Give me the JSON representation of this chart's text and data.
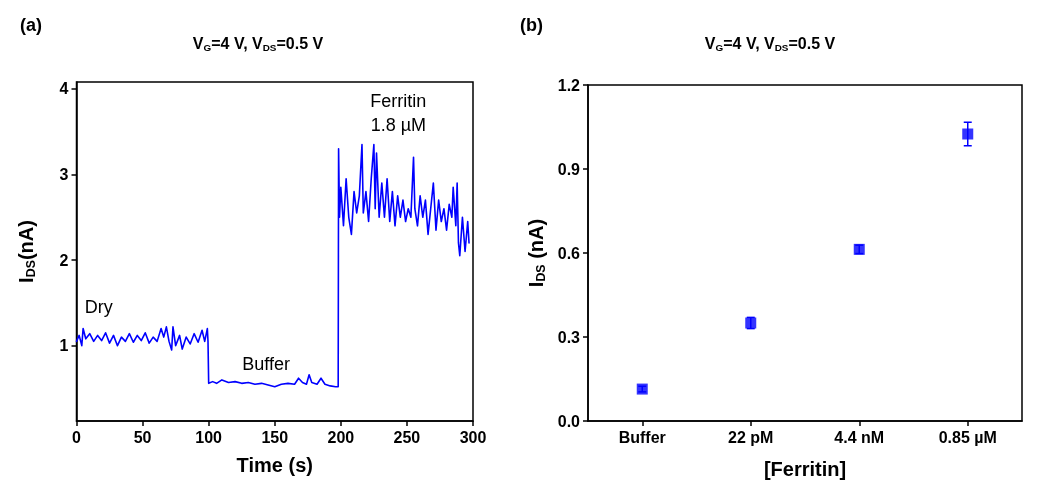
{
  "chart_data": [
    {
      "type": "line",
      "title": "V$_{G}$=4 V, V$_{DS}$=0.5 V",
      "xlabel": "Time (s)",
      "ylabel": "I$_{DS}$(nA)",
      "color": "#0000ff",
      "line_style": "solid",
      "marker": "none",
      "annotations": [
        "(a)",
        "Dry",
        "Buffer",
        "Ferritin\n1.8 µM"
      ],
      "xlim": [
        0,
        300
      ],
      "xticks": [
        0,
        50,
        100,
        150,
        200,
        250,
        300
      ],
      "ylim": [
        0.12,
        4.08
      ],
      "yticks": [
        1,
        2,
        3,
        4
      ],
      "x": [
        0,
        2,
        4,
        5,
        7,
        10,
        13,
        16,
        19,
        22,
        25,
        28,
        31,
        34,
        37,
        40,
        43,
        46,
        49,
        52,
        55,
        58,
        61,
        64,
        66,
        68,
        70,
        72,
        73,
        75,
        78,
        80,
        83,
        86,
        89,
        92,
        95,
        97,
        99,
        99.5,
        100,
        103,
        106,
        110,
        115,
        120,
        125,
        130,
        135,
        140,
        145,
        150,
        155,
        160,
        165,
        168,
        171,
        174,
        176,
        178,
        182,
        185,
        188,
        192,
        196,
        198,
        198.3,
        199,
        200,
        202,
        204,
        206,
        208,
        210,
        212,
        214,
        216,
        217,
        219,
        221,
        223,
        225,
        226,
        227,
        229,
        231,
        233,
        235,
        237,
        239,
        241,
        243,
        245,
        247,
        249,
        251,
        253,
        255,
        256,
        258,
        260,
        262,
        264,
        266,
        268,
        270,
        272,
        274,
        276,
        278,
        280,
        282,
        284,
        285,
        287,
        288,
        289,
        290,
        292,
        294,
        296,
        297
      ],
      "values": [
        1.05,
        1.12,
        1.0,
        1.2,
        1.08,
        1.14,
        1.05,
        1.12,
        1.06,
        1.15,
        1.03,
        1.12,
        1.0,
        1.1,
        1.05,
        1.14,
        1.04,
        1.12,
        1.06,
        1.15,
        1.03,
        1.1,
        1.05,
        1.2,
        1.1,
        1.22,
        1.05,
        0.95,
        1.22,
        1.0,
        1.12,
        0.96,
        1.1,
        1.02,
        1.14,
        1.04,
        1.18,
        1.05,
        1.2,
        1.05,
        0.56,
        0.58,
        0.56,
        0.6,
        0.57,
        0.58,
        0.56,
        0.57,
        0.55,
        0.56,
        0.54,
        0.52,
        0.55,
        0.56,
        0.55,
        0.62,
        0.57,
        0.55,
        0.66,
        0.57,
        0.55,
        0.62,
        0.55,
        0.53,
        0.52,
        0.52,
        3.3,
        2.5,
        2.85,
        2.4,
        2.95,
        2.5,
        2.3,
        2.8,
        2.55,
        2.75,
        3.35,
        2.55,
        2.8,
        2.45,
        2.95,
        3.35,
        2.6,
        3.25,
        2.5,
        2.9,
        2.5,
        2.95,
        2.45,
        2.8,
        2.4,
        2.75,
        2.5,
        2.7,
        2.45,
        2.6,
        2.5,
        3.2,
        2.6,
        2.4,
        2.75,
        2.5,
        2.7,
        2.3,
        2.6,
        2.9,
        2.35,
        2.7,
        2.45,
        2.6,
        2.35,
        2.65,
        2.5,
        2.85,
        2.4,
        2.9,
        2.2,
        2.05,
        2.5,
        2.1,
        2.45,
        2.2
      ]
    },
    {
      "type": "scatter",
      "title": "V$_{G}$=4 V, V$_{DS}$=0.5 V",
      "xlabel": "[Ferritin]",
      "ylabel": "I$_{DS}$ (nA)",
      "marker": "square",
      "annotations": [
        "(b)"
      ],
      "categories": [
        "Buffer",
        "22 pM",
        "4.4 nM",
        "0.85 µM"
      ],
      "series": [
        {
          "color": "#0000ff",
          "values": [
            0.114,
            0.35,
            0.613,
            1.025
          ],
          "errors": [
            0.01,
            0.02,
            0.015,
            0.042
          ]
        }
      ],
      "ylim": [
        0,
        1.2
      ],
      "yticks": [
        {
          "value": 0,
          "label": "0.0"
        },
        {
          "value": 0.3,
          "label": "0.3"
        },
        {
          "value": 0.6,
          "label": "0.6"
        },
        {
          "value": 0.9,
          "label": "0.9"
        },
        {
          "value": 1.2,
          "label": "1.2"
        }
      ]
    }
  ]
}
